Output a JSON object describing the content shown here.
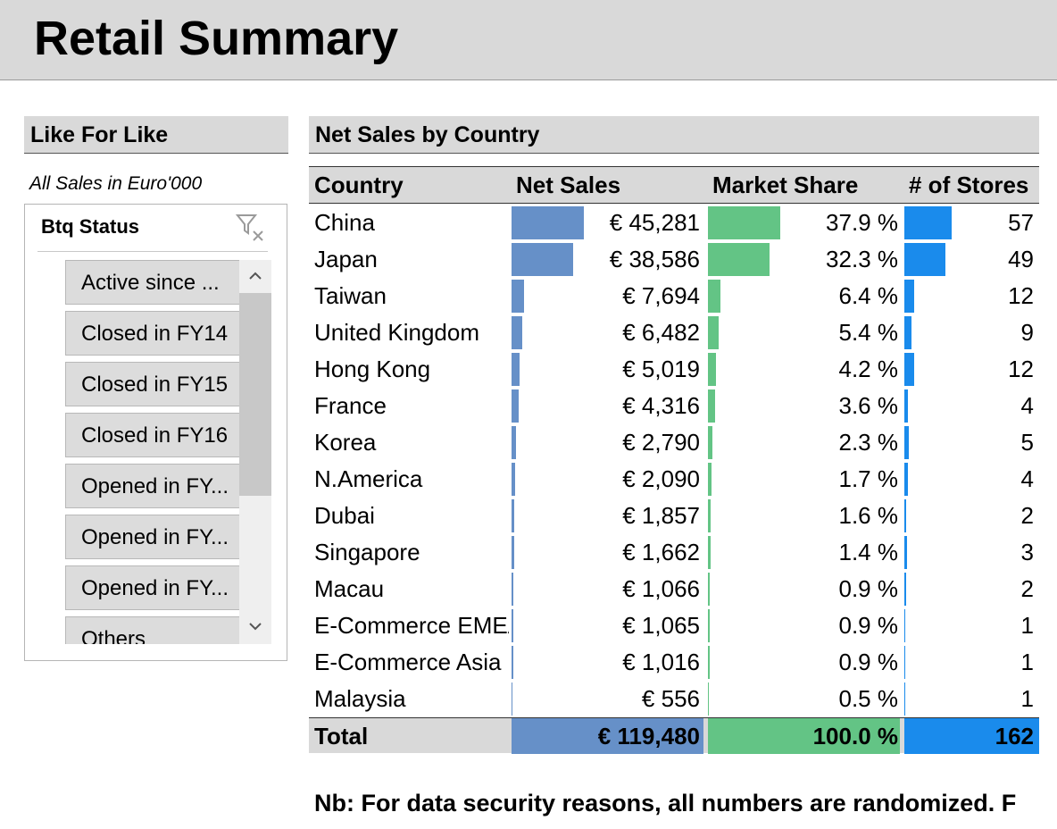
{
  "header": {
    "title": "Retail Summary"
  },
  "slicer_panel": {
    "title": "Like For Like",
    "note": "All Sales in Euro'000",
    "slicer": {
      "title": "Btq Status",
      "items": [
        "Active since ...",
        "Closed in FY14",
        "Closed in FY15",
        "Closed in FY16",
        "Opened in FY...",
        "Opened in FY...",
        "Opened in FY...",
        "Others"
      ]
    }
  },
  "table": {
    "title": "Net Sales by Country",
    "columns": [
      "Country",
      "Net Sales",
      "Market Share",
      "# of Stores"
    ],
    "colors": {
      "net_sales": "#6690c8",
      "market_share": "#63c485",
      "stores": "#1a8bec"
    },
    "rows": [
      {
        "country": "China",
        "net_sales": {
          "value": 45281,
          "label": "€ 45,281"
        },
        "market_share": {
          "value": 37.9,
          "label": "37.9 %"
        },
        "stores": 57
      },
      {
        "country": "Japan",
        "net_sales": {
          "value": 38586,
          "label": "€ 38,586"
        },
        "market_share": {
          "value": 32.3,
          "label": "32.3 %"
        },
        "stores": 49
      },
      {
        "country": "Taiwan",
        "net_sales": {
          "value": 7694,
          "label": "€ 7,694"
        },
        "market_share": {
          "value": 6.4,
          "label": "6.4 %"
        },
        "stores": 12
      },
      {
        "country": "United Kingdom",
        "net_sales": {
          "value": 6482,
          "label": "€ 6,482"
        },
        "market_share": {
          "value": 5.4,
          "label": "5.4 %"
        },
        "stores": 9
      },
      {
        "country": "Hong Kong",
        "net_sales": {
          "value": 5019,
          "label": "€ 5,019"
        },
        "market_share": {
          "value": 4.2,
          "label": "4.2 %"
        },
        "stores": 12
      },
      {
        "country": "France",
        "net_sales": {
          "value": 4316,
          "label": "€ 4,316"
        },
        "market_share": {
          "value": 3.6,
          "label": "3.6 %"
        },
        "stores": 4
      },
      {
        "country": "Korea",
        "net_sales": {
          "value": 2790,
          "label": "€ 2,790"
        },
        "market_share": {
          "value": 2.3,
          "label": "2.3 %"
        },
        "stores": 5
      },
      {
        "country": "N.America",
        "net_sales": {
          "value": 2090,
          "label": "€ 2,090"
        },
        "market_share": {
          "value": 1.7,
          "label": "1.7 %"
        },
        "stores": 4
      },
      {
        "country": "Dubai",
        "net_sales": {
          "value": 1857,
          "label": "€ 1,857"
        },
        "market_share": {
          "value": 1.6,
          "label": "1.6 %"
        },
        "stores": 2
      },
      {
        "country": "Singapore",
        "net_sales": {
          "value": 1662,
          "label": "€ 1,662"
        },
        "market_share": {
          "value": 1.4,
          "label": "1.4 %"
        },
        "stores": 3
      },
      {
        "country": "Macau",
        "net_sales": {
          "value": 1066,
          "label": "€ 1,066"
        },
        "market_share": {
          "value": 0.9,
          "label": "0.9 %"
        },
        "stores": 2
      },
      {
        "country": "E-Commerce EMEA",
        "net_sales": {
          "value": 1065,
          "label": "€ 1,065"
        },
        "market_share": {
          "value": 0.9,
          "label": "0.9 %"
        },
        "stores": 1
      },
      {
        "country": "E-Commerce Asia",
        "net_sales": {
          "value": 1016,
          "label": "€ 1,016"
        },
        "market_share": {
          "value": 0.9,
          "label": "0.9 %"
        },
        "stores": 1
      },
      {
        "country": "Malaysia",
        "net_sales": {
          "value": 556,
          "label": "€ 556"
        },
        "market_share": {
          "value": 0.5,
          "label": "0.5 %"
        },
        "stores": 1
      }
    ],
    "total": {
      "label": "Total",
      "net_sales": {
        "value": 119480,
        "label": "€ 119,480"
      },
      "market_share": {
        "value": 100.0,
        "label": "100.0 %"
      },
      "stores": 162
    }
  },
  "footnote": "Nb: For data security reasons, all numbers are randomized. F"
}
